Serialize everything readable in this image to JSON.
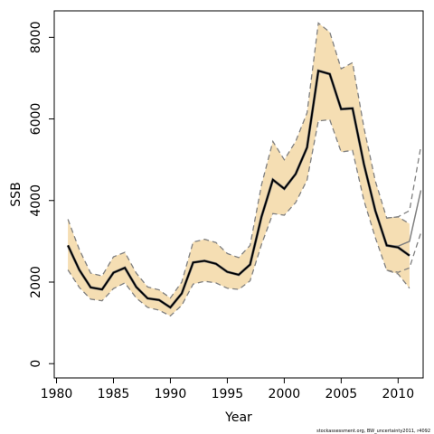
{
  "chart_data": {
    "type": "line",
    "title": "",
    "xlabel": "Year",
    "ylabel": "SSB",
    "xlim": [
      1979.8,
      2012.2
    ],
    "ylim": [
      -350,
      8650
    ],
    "x_ticks": [
      1980,
      1985,
      1990,
      1995,
      2000,
      2005,
      2010
    ],
    "y_ticks": [
      0,
      2000,
      4000,
      6000,
      8000
    ],
    "x_tick_labels": [
      "1980",
      "1985",
      "1990",
      "1995",
      "2000",
      "2005",
      "2010"
    ],
    "y_tick_labels": [
      "0",
      "2000",
      "4000",
      "6000",
      "8000"
    ],
    "grid": false,
    "legend": "none",
    "footnote": "stockassessment.org,  BW_uncertainty2011,  r4092",
    "colors": {
      "band": "#f5deb3",
      "estimate": "#000000",
      "ci_lines": "#808080",
      "other_run": "#808080",
      "frame": "#000000"
    },
    "series": [
      {
        "role": "estimate",
        "x": [
          1981,
          1982,
          1983,
          1984,
          1985,
          1986,
          1987,
          1988,
          1989,
          1990,
          1991,
          1992,
          1993,
          1994,
          1995,
          1996,
          1997,
          1998,
          1999,
          2000,
          2001,
          2002,
          2003,
          2004,
          2005,
          2006,
          2007,
          2008,
          2009,
          2010,
          2011
        ],
        "values": [
          2900,
          2300,
          1870,
          1820,
          2230,
          2350,
          1880,
          1600,
          1560,
          1380,
          1720,
          2480,
          2520,
          2450,
          2250,
          2180,
          2430,
          3600,
          4510,
          4290,
          4650,
          5300,
          7180,
          7100,
          6240,
          6260,
          4890,
          3750,
          2900,
          2850,
          2650
        ]
      },
      {
        "role": "upper",
        "x": [
          1981,
          1982,
          1983,
          1984,
          1985,
          1986,
          1987,
          1988,
          1989,
          1990,
          1991,
          1992,
          1993,
          1994,
          1995,
          1996,
          1997,
          1998,
          1999,
          2000,
          2001,
          2002,
          2003,
          2004,
          2005,
          2006,
          2007,
          2008,
          2009,
          2010,
          2011
        ],
        "values": [
          3540,
          2800,
          2220,
          2150,
          2620,
          2730,
          2220,
          1880,
          1810,
          1610,
          2000,
          2980,
          3050,
          2970,
          2700,
          2600,
          2900,
          4380,
          5450,
          5000,
          5450,
          6150,
          8350,
          8130,
          7230,
          7380,
          5790,
          4480,
          3570,
          3600,
          3430
        ]
      },
      {
        "role": "lower",
        "x": [
          1981,
          1982,
          1983,
          1984,
          1985,
          1986,
          1987,
          1988,
          1989,
          1990,
          1991,
          1992,
          1993,
          1994,
          1995,
          1996,
          1997,
          1998,
          1999,
          2000,
          2001,
          2002,
          2003,
          2004,
          2005,
          2006,
          2007,
          2008,
          2009,
          2010,
          2011
        ],
        "values": [
          2300,
          1870,
          1580,
          1540,
          1840,
          1980,
          1610,
          1380,
          1310,
          1170,
          1430,
          1950,
          2020,
          1980,
          1850,
          1820,
          2030,
          2920,
          3680,
          3640,
          3950,
          4500,
          5950,
          5980,
          5190,
          5230,
          4000,
          3090,
          2290,
          2200,
          1850
        ]
      },
      {
        "role": "other-run",
        "x": [
          2009,
          2010,
          2011,
          2012
        ],
        "values": [
          2900,
          2880,
          3000,
          4250
        ]
      },
      {
        "role": "other-run-upper",
        "x": [
          2009,
          2010,
          2011,
          2012
        ],
        "values": [
          3570,
          3600,
          3750,
          5330
        ]
      },
      {
        "role": "other-run-lower",
        "x": [
          2009,
          2010,
          2011,
          2012
        ],
        "values": [
          2290,
          2240,
          2350,
          3210
        ]
      }
    ]
  }
}
